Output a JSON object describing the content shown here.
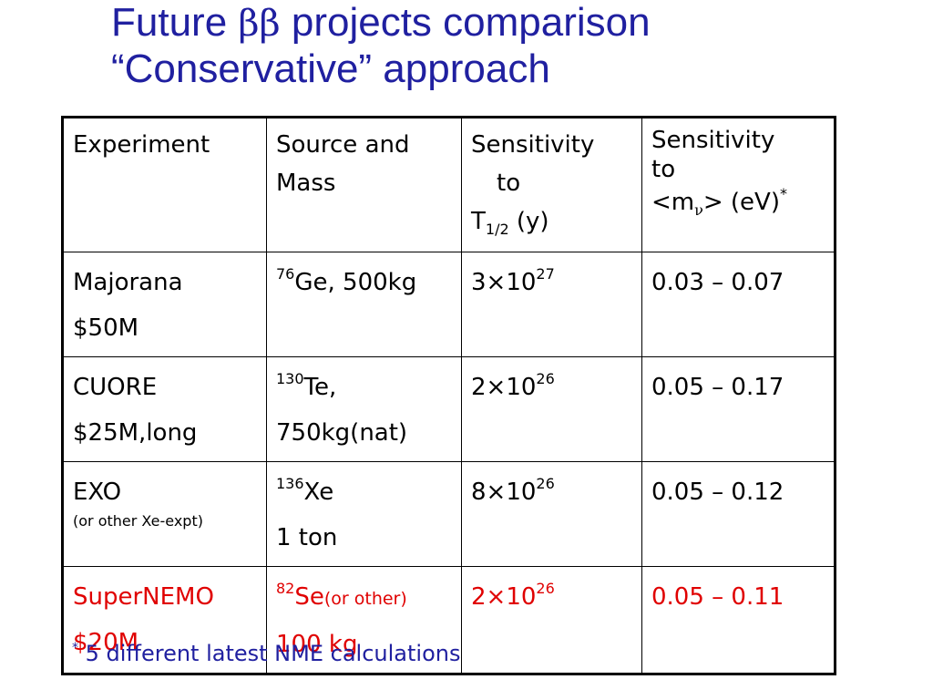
{
  "title": {
    "line1_pre": "Future ",
    "line1_greek": "ββ",
    "line1_post": " projects comparison",
    "line2": "“Conservative” approach"
  },
  "table": {
    "headers": {
      "experiment": "Experiment",
      "source_l1": "Source and",
      "source_l2": "Mass",
      "sens_t_l1": "Sensitivity",
      "sens_t_l2": "to",
      "sens_t_l3": "T",
      "sens_t_sub": "1/2",
      "sens_t_unit": " (y)",
      "sens_m_l1": "Sensitivity",
      "sens_m_l2": "to",
      "sens_m_pre": "<m",
      "sens_m_nu": "ν",
      "sens_m_post": "> (eV)",
      "sens_m_star": "*"
    },
    "rows": [
      {
        "name": "Majorana",
        "cost": "$50M",
        "iso": "76",
        "element": "Ge, 500kg",
        "mass": "",
        "t_base": "3×10",
        "t_exp": "27",
        "mnu": "0.03 – 0.07"
      },
      {
        "name": "CUORE",
        "cost": "$25M,long",
        "iso": "130",
        "element": "Te,",
        "mass": "750kg(nat)",
        "t_base": "2×10",
        "t_exp": "26",
        "mnu": "0.05 – 0.17"
      },
      {
        "name": "EXO",
        "note": "(or other Xe-expt)",
        "iso": "136",
        "element": "Xe",
        "mass": "1 ton",
        "t_base": "8×10",
        "t_exp": "26",
        "mnu": "0.05 – 0.12"
      },
      {
        "name": "SuperNEMO",
        "cost": "$20M",
        "iso": "82",
        "element": "Se",
        "element_note": "(or other)",
        "mass": "100 kg",
        "t_base": "2×10",
        "t_exp": "26",
        "mnu": "0.05 – 0.11"
      }
    ]
  },
  "footnote": {
    "star": "*",
    "text": " 5 different latest NME calculations"
  },
  "colors": {
    "title": "#2020a0",
    "highlight_row": "#e00000"
  }
}
